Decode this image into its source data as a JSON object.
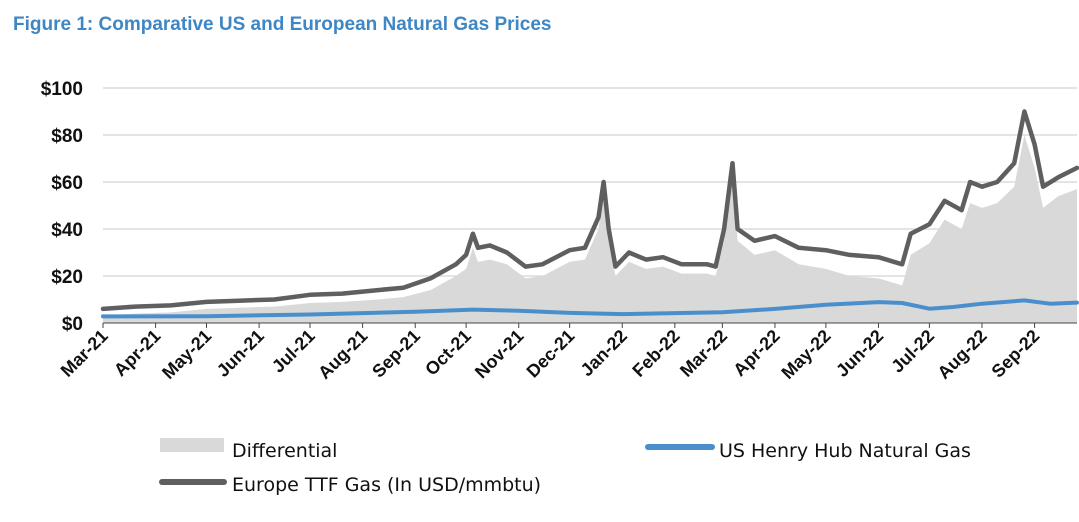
{
  "title": "Figure 1: Comparative US and European Natural Gas Prices",
  "colors": {
    "title": "#3f86c4",
    "differential": "#d9d9d9",
    "us": "#4a8fcc",
    "europe": "#5f5f61",
    "grid": "#d4d4d4"
  },
  "legend": {
    "differential": "Differential",
    "us": "US Henry Hub Natural Gas",
    "europe": "Europe TTF Gas (In USD/mmbtu)"
  },
  "chart_data": {
    "type": "line",
    "y_tick_labels": [
      "$0",
      "$20",
      "$40",
      "$60",
      "$80",
      "$100"
    ],
    "y_ticks": [
      0,
      20,
      40,
      60,
      80,
      100
    ],
    "ylim": [
      0,
      100
    ],
    "x_tick_labels": [
      "Mar-21",
      "Apr-21",
      "May-21",
      "Jun-21",
      "Jul-21",
      "Aug-21",
      "Sep-21",
      "Oct-21",
      "Nov-21",
      "Dec-21",
      "Jan-22",
      "Feb-22",
      "Mar-22",
      "Apr-22",
      "May-22",
      "Jun-22",
      "Jul-22",
      "Aug-22",
      "Sep-22"
    ],
    "xlim": [
      "2021-03-01",
      "2022-09-26"
    ],
    "grid": "horizontal",
    "legend_position": "bottom",
    "series": [
      {
        "name": "Europe TTF Gas (In USD/mmbtu)",
        "x": [
          "2021-03-01",
          "2021-03-20",
          "2021-04-10",
          "2021-05-01",
          "2021-05-20",
          "2021-06-10",
          "2021-07-01",
          "2021-07-20",
          "2021-08-10",
          "2021-08-25",
          "2021-09-10",
          "2021-09-25",
          "2021-10-01",
          "2021-10-05",
          "2021-10-08",
          "2021-10-15",
          "2021-10-25",
          "2021-11-05",
          "2021-11-15",
          "2021-12-01",
          "2021-12-10",
          "2021-12-18",
          "2021-12-21",
          "2021-12-24",
          "2021-12-28",
          "2022-01-05",
          "2022-01-15",
          "2022-01-25",
          "2022-02-05",
          "2022-02-20",
          "2022-02-25",
          "2022-03-02",
          "2022-03-07",
          "2022-03-10",
          "2022-03-20",
          "2022-04-01",
          "2022-04-15",
          "2022-05-01",
          "2022-05-15",
          "2022-06-01",
          "2022-06-15",
          "2022-06-20",
          "2022-07-01",
          "2022-07-10",
          "2022-07-20",
          "2022-07-25",
          "2022-08-01",
          "2022-08-10",
          "2022-08-20",
          "2022-08-26",
          "2022-09-01",
          "2022-09-06",
          "2022-09-15",
          "2022-09-26"
        ],
        "values": [
          6,
          7,
          7.5,
          9,
          9.5,
          10,
          12,
          12.5,
          14,
          15,
          19,
          25,
          29,
          38,
          32,
          33,
          30,
          24,
          25,
          31,
          32,
          45,
          60,
          40,
          24,
          30,
          27,
          28,
          25,
          25,
          24,
          40,
          68,
          40,
          35,
          37,
          32,
          31,
          29,
          28,
          25,
          38,
          42,
          52,
          48,
          60,
          58,
          60,
          68,
          90,
          76,
          58,
          62,
          66
        ]
      },
      {
        "name": "US Henry Hub Natural Gas",
        "x": [
          "2021-03-01",
          "2021-05-01",
          "2021-07-01",
          "2021-09-01",
          "2021-10-05",
          "2021-11-01",
          "2021-12-01",
          "2022-01-01",
          "2022-02-01",
          "2022-03-01",
          "2022-04-01",
          "2022-05-01",
          "2022-06-01",
          "2022-06-15",
          "2022-07-01",
          "2022-07-15",
          "2022-08-01",
          "2022-08-26",
          "2022-09-10",
          "2022-09-26"
        ],
        "values": [
          2.8,
          2.9,
          3.6,
          4.8,
          5.7,
          5.2,
          4.3,
          3.8,
          4.2,
          4.6,
          6.0,
          7.8,
          8.9,
          8.5,
          6.1,
          6.8,
          8.2,
          9.6,
          8.2,
          8.7
        ]
      },
      {
        "name": "Differential",
        "type": "area",
        "x": [
          "2021-03-01",
          "2021-03-20",
          "2021-04-10",
          "2021-05-01",
          "2021-05-20",
          "2021-06-10",
          "2021-07-01",
          "2021-07-20",
          "2021-08-10",
          "2021-08-25",
          "2021-09-10",
          "2021-09-25",
          "2021-10-01",
          "2021-10-05",
          "2021-10-08",
          "2021-10-15",
          "2021-10-25",
          "2021-11-05",
          "2021-11-15",
          "2021-12-01",
          "2021-12-10",
          "2021-12-18",
          "2021-12-21",
          "2021-12-24",
          "2021-12-28",
          "2022-01-05",
          "2022-01-15",
          "2022-01-25",
          "2022-02-05",
          "2022-02-20",
          "2022-02-25",
          "2022-03-02",
          "2022-03-07",
          "2022-03-10",
          "2022-03-20",
          "2022-04-01",
          "2022-04-15",
          "2022-05-01",
          "2022-05-15",
          "2022-06-01",
          "2022-06-15",
          "2022-06-20",
          "2022-07-01",
          "2022-07-10",
          "2022-07-20",
          "2022-07-25",
          "2022-08-01",
          "2022-08-10",
          "2022-08-20",
          "2022-08-26",
          "2022-09-01",
          "2022-09-06",
          "2022-09-15",
          "2022-09-26"
        ],
        "values": [
          3,
          4,
          4.5,
          6,
          6.5,
          7,
          8.5,
          9,
          10,
          11,
          14,
          20,
          23,
          32,
          26,
          27,
          25,
          19,
          20,
          26,
          27,
          40,
          55,
          35,
          20,
          26,
          23,
          24,
          21,
          21,
          20,
          35,
          63,
          35,
          29,
          31,
          25,
          23,
          20,
          19,
          16,
          29,
          34,
          44,
          40,
          51,
          49,
          51,
          58,
          80,
          66,
          49,
          54,
          57
        ]
      }
    ]
  }
}
